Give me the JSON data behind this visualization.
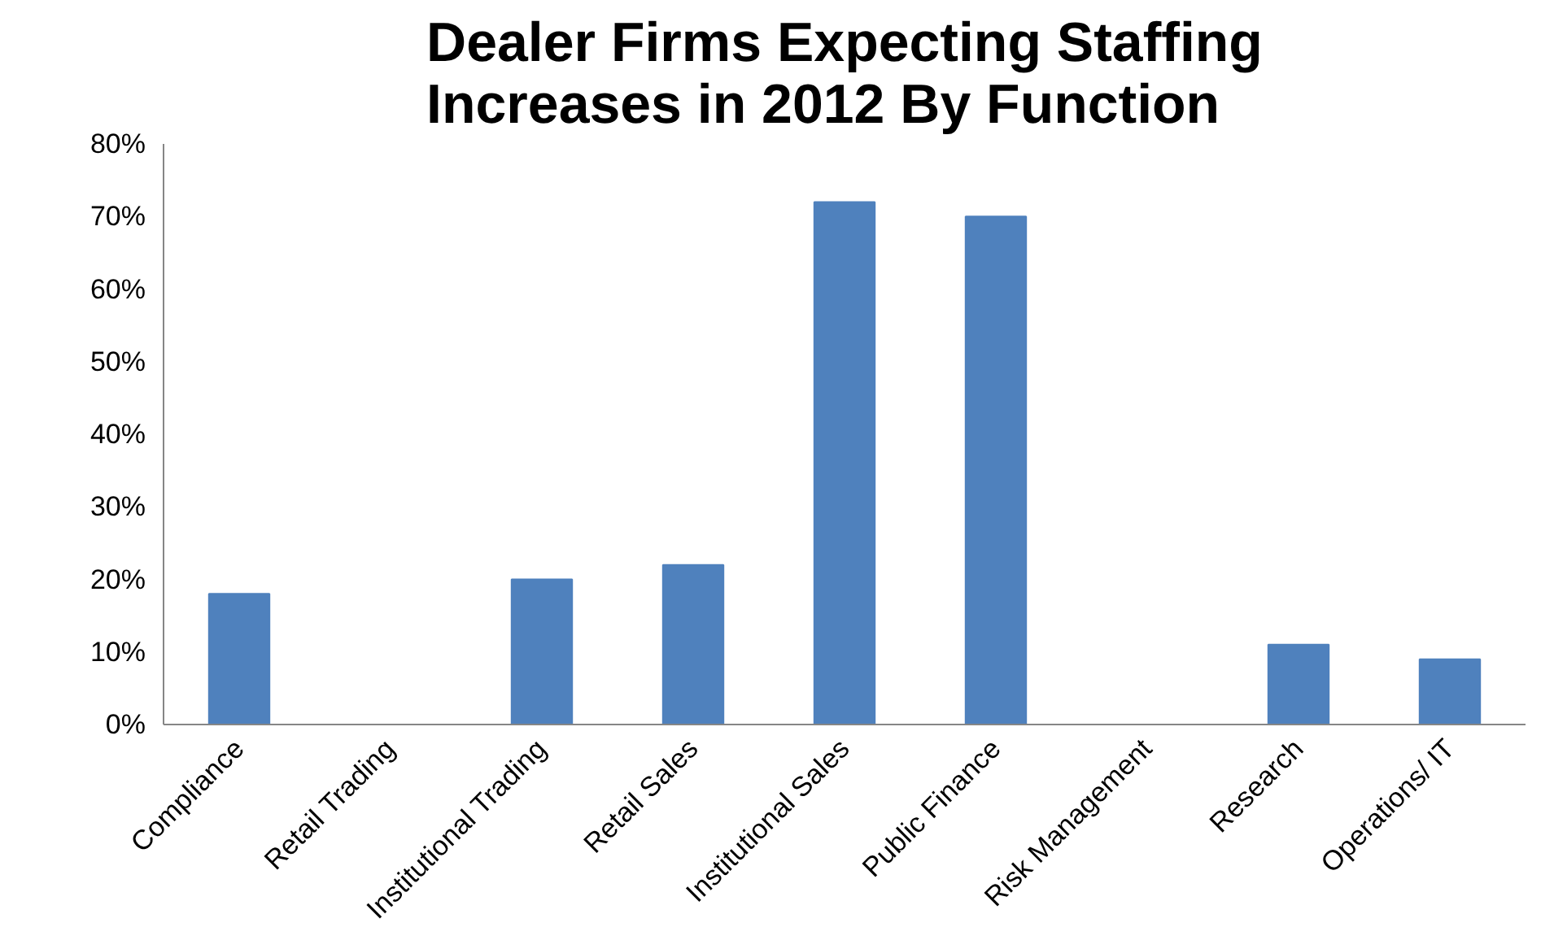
{
  "chart_data": {
    "type": "bar",
    "title": "Dealer Firms Expecting Staffing Increases in 2012 By Function",
    "categories": [
      "Compliance",
      "Retail Trading",
      "Institutional Trading",
      "Retail Sales",
      "Institutional Sales",
      "Public Finance",
      "Risk Management",
      "Research",
      "Operations/ IT"
    ],
    "values": [
      18,
      0,
      20,
      22,
      72,
      70,
      0,
      11,
      9
    ],
    "color": "#4f81bd",
    "ylim": [
      0,
      80
    ],
    "yticks": [
      {
        "value": 0,
        "label": "0%"
      },
      {
        "value": 10,
        "label": "10%"
      },
      {
        "value": 20,
        "label": "20%"
      },
      {
        "value": 30,
        "label": "30%"
      },
      {
        "value": 40,
        "label": "40%"
      },
      {
        "value": 50,
        "label": "50%"
      },
      {
        "value": 60,
        "label": "60%"
      },
      {
        "value": 70,
        "label": "70%"
      },
      {
        "value": 80,
        "label": "80%"
      }
    ],
    "grid": false
  }
}
